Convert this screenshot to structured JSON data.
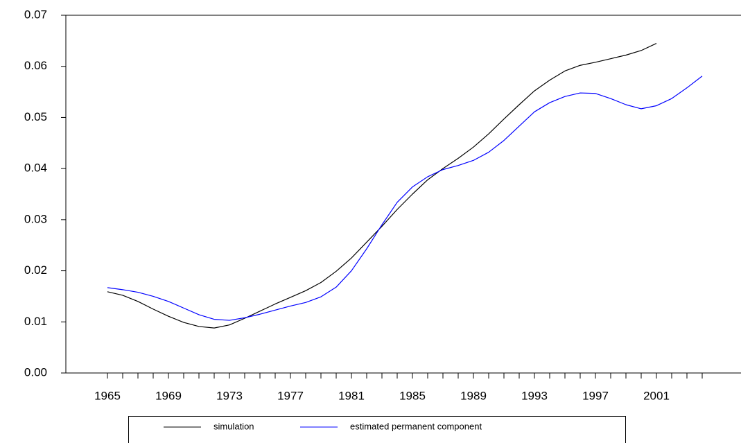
{
  "chart_data": {
    "type": "line",
    "categories": [
      "1965",
      null,
      null,
      null,
      "1969",
      null,
      null,
      null,
      "1973",
      null,
      null,
      null,
      "1977",
      null,
      null,
      null,
      "1981",
      null,
      null,
      null,
      "1985",
      null,
      null,
      null,
      "1989",
      null,
      null,
      null,
      "1993",
      null,
      null,
      null,
      "1997",
      null,
      null,
      null,
      "2001",
      null,
      null,
      null
    ],
    "series": [
      {
        "name": "simulation",
        "color": "#000000",
        "values": [
          0.0159,
          0.0152,
          0.014,
          0.0125,
          0.0111,
          0.0099,
          0.0091,
          0.0088,
          0.0094,
          0.0107,
          0.0121,
          0.0135,
          0.0148,
          0.0161,
          0.0177,
          0.0199,
          0.0225,
          0.0256,
          0.0287,
          0.032,
          0.035,
          0.0378,
          0.04,
          0.042,
          0.0442,
          0.0468,
          0.0497,
          0.0525,
          0.0552,
          0.0573,
          0.0591,
          0.0602,
          0.0608,
          0.0615,
          0.0622,
          0.0631,
          0.0645,
          null,
          null,
          null
        ]
      },
      {
        "name": "estimated permanent component",
        "color": "#0000ff",
        "values": [
          0.0167,
          0.0163,
          0.0158,
          0.015,
          0.014,
          0.0127,
          0.0114,
          0.0105,
          0.0103,
          0.0108,
          0.0115,
          0.0123,
          0.0131,
          0.0138,
          0.0149,
          0.0168,
          0.02,
          0.0243,
          0.029,
          0.0334,
          0.0364,
          0.0384,
          0.0398,
          0.0406,
          0.0416,
          0.0432,
          0.0455,
          0.0483,
          0.0511,
          0.0529,
          0.0541,
          0.0548,
          0.0547,
          0.0537,
          0.0525,
          0.0517,
          0.0523,
          0.0537,
          0.0558,
          0.0581
        ]
      }
    ],
    "ylim": [
      0,
      0.07
    ],
    "yticks": [
      {
        "value": 0,
        "label": "0.00"
      },
      0.01,
      0.02,
      0.03,
      0.04,
      0.05,
      0.06,
      0.07
    ],
    "grid": false,
    "legend": "bottom"
  }
}
